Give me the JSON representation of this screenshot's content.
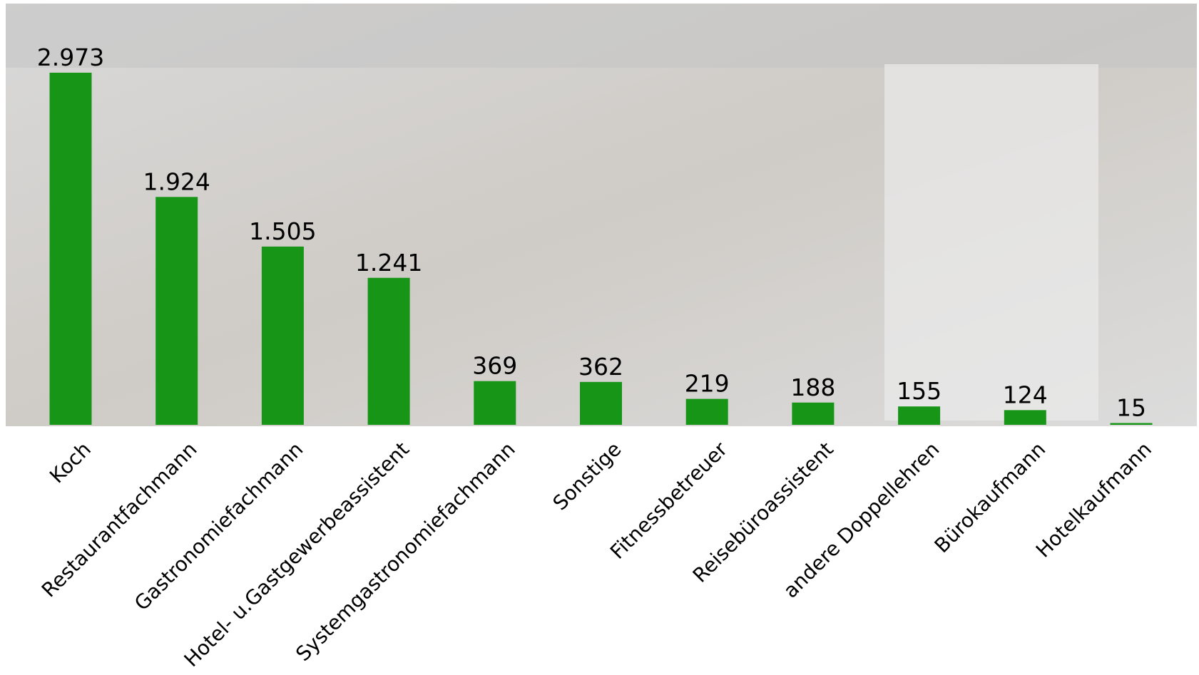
{
  "chart_data": {
    "type": "bar",
    "categories": [
      "Koch",
      "Restaurantfachmann",
      "Gastronomiefachmann",
      "Hotel- u.Gastgewerbeassistent",
      "Systemgastronomiefachmann",
      "Sonstige",
      "Fitnessbetreuer",
      "Reisebüroassistent",
      "andere Doppellehren",
      "Bürokaufmann",
      "Hotelkaufmann"
    ],
    "values": [
      2973,
      1924,
      1505,
      1241,
      369,
      362,
      219,
      188,
      155,
      124,
      15
    ],
    "value_labels": [
      "2.973",
      "1.924",
      "1.505",
      "1.241",
      "369",
      "362",
      "219",
      "188",
      "155",
      "124",
      "15"
    ],
    "color": "#169516"
  }
}
